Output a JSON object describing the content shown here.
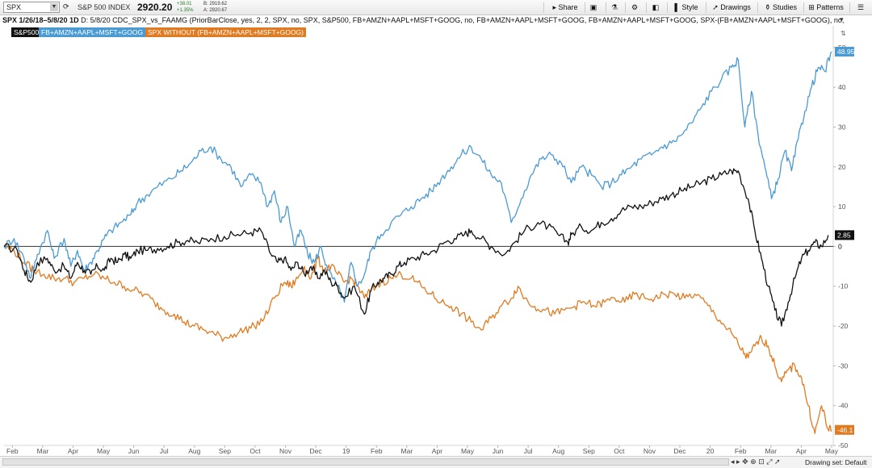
{
  "toolbar": {
    "symbol": "SPX",
    "index_name": "S&P 500 INDEX",
    "last_price": "2920.20",
    "change": "+38.01",
    "change_pct": "+1.35%",
    "bid": "B: 2919.62",
    "ask": "A: 2920.67",
    "share_label": "Share",
    "style_label": "Style",
    "drawings_label": "Drawings",
    "studies_label": "Studies",
    "patterns_label": "Patterns"
  },
  "info": {
    "title": "SPX 1/26/18–5/8/20 1D",
    "text": "D: 5/8/20  CDC_SPX_vs_FAAMG (PriorBarClose, yes, 2, 2, SPX, no, SPX, S&P500, FB+AMZN+AAPL+MSFT+GOOG, no, FB+AMZN+AAPL+MSFT+GOOG, FB+AMZN+AAPL+MSFT+GOOG, SPX-(FB+AMZN+AAPL+MSFT+GOOG), no, SPX ..."
  },
  "bottom": {
    "drawing_set": "Drawing set: Default"
  },
  "colors": {
    "spx": "#111111",
    "faamg": "#4a9ad4",
    "without": "#e07b22",
    "zero_line": "#333333"
  },
  "chart_data": {
    "type": "line",
    "x_tick_labels": [
      "Feb",
      "Mar",
      "Apr",
      "May",
      "Jun",
      "Jul",
      "Aug",
      "Sep",
      "Oct",
      "Nov",
      "Dec",
      "19",
      "Feb",
      "Mar",
      "Apr",
      "May",
      "Jun",
      "Jul",
      "Aug",
      "Sep",
      "Oct",
      "Nov",
      "Dec",
      "20",
      "Feb",
      "Mar",
      "Apr",
      "May"
    ],
    "y_ticks": [
      50,
      40,
      30,
      20,
      10,
      0,
      -10,
      -20,
      -30,
      -40,
      -50
    ],
    "ylim": [
      -50,
      52
    ],
    "reference_line": 0,
    "series": [
      {
        "name": "S&P500",
        "color": "#111111",
        "end_label": "2.85",
        "values": [
          [
            0,
            0
          ],
          [
            0.4,
            -1
          ],
          [
            0.6,
            -6
          ],
          [
            0.8,
            -9
          ],
          [
            1.0,
            -4
          ],
          [
            1.3,
            -3
          ],
          [
            1.5,
            -6
          ],
          [
            1.8,
            -5
          ],
          [
            2.0,
            -8
          ],
          [
            2.2,
            -4
          ],
          [
            2.4,
            -6
          ],
          [
            2.6,
            -7
          ],
          [
            2.8,
            -5
          ],
          [
            3.0,
            -6
          ],
          [
            3.2,
            -3
          ],
          [
            3.4,
            -4
          ],
          [
            3.6,
            -2
          ],
          [
            3.8,
            -3
          ],
          [
            4.0,
            -1
          ],
          [
            4.3,
            -1
          ],
          [
            4.6,
            -0.5
          ],
          [
            4.9,
            0
          ],
          [
            5.2,
            1
          ],
          [
            5.5,
            1.5
          ],
          [
            5.8,
            1
          ],
          [
            6.2,
            2
          ],
          [
            6.6,
            2.5
          ],
          [
            7.0,
            3
          ],
          [
            7.4,
            3.5
          ],
          [
            7.7,
            4
          ],
          [
            8.0,
            -2
          ],
          [
            8.2,
            -4
          ],
          [
            8.4,
            -3
          ],
          [
            8.6,
            -6
          ],
          [
            8.8,
            -4
          ],
          [
            9.0,
            -7
          ],
          [
            9.2,
            -5
          ],
          [
            9.4,
            -8
          ],
          [
            9.6,
            -6
          ],
          [
            9.8,
            -9
          ],
          [
            10.0,
            -10
          ],
          [
            10.2,
            -13
          ],
          [
            10.5,
            -10
          ],
          [
            10.8,
            -17
          ],
          [
            11.0,
            -11
          ],
          [
            11.2,
            -9
          ],
          [
            11.4,
            -8
          ],
          [
            11.6,
            -7
          ],
          [
            11.8,
            -5
          ],
          [
            12.0,
            -4
          ],
          [
            12.3,
            -3
          ],
          [
            12.6,
            -2
          ],
          [
            12.9,
            -1
          ],
          [
            13.2,
            1
          ],
          [
            13.5,
            2
          ],
          [
            13.8,
            3
          ],
          [
            14.0,
            4
          ],
          [
            14.3,
            2
          ],
          [
            14.6,
            0
          ],
          [
            15.0,
            -2
          ],
          [
            15.3,
            1
          ],
          [
            15.6,
            4
          ],
          [
            16.0,
            6
          ],
          [
            16.3,
            5
          ],
          [
            16.6,
            3
          ],
          [
            16.9,
            1
          ],
          [
            17.0,
            3
          ],
          [
            17.3,
            5
          ],
          [
            17.6,
            4
          ],
          [
            17.9,
            6
          ],
          [
            18.2,
            7
          ],
          [
            18.5,
            9
          ],
          [
            18.8,
            10
          ],
          [
            19.1,
            10
          ],
          [
            19.4,
            11
          ],
          [
            19.7,
            12
          ],
          [
            20.0,
            13
          ],
          [
            20.3,
            14
          ],
          [
            20.6,
            15
          ],
          [
            20.9,
            16
          ],
          [
            21.2,
            17
          ],
          [
            21.5,
            18
          ],
          [
            21.8,
            19
          ],
          [
            22.0,
            19
          ],
          [
            22.3,
            12
          ],
          [
            22.5,
            4
          ],
          [
            22.7,
            -3
          ],
          [
            22.9,
            -10
          ],
          [
            23.1,
            -16
          ],
          [
            23.3,
            -20
          ],
          [
            23.5,
            -14
          ],
          [
            23.7,
            -8
          ],
          [
            23.9,
            -3
          ],
          [
            24.1,
            -1
          ],
          [
            24.3,
            1
          ],
          [
            24.5,
            0
          ],
          [
            24.7,
            2.85
          ]
        ]
      },
      {
        "name": "FB+AMZN+AAPL+MSFT+GOOG",
        "color": "#4a9ad4",
        "end_label": "48.95",
        "values": [
          [
            0,
            0
          ],
          [
            0.3,
            2
          ],
          [
            0.6,
            -3
          ],
          [
            0.8,
            -8
          ],
          [
            1.0,
            -2
          ],
          [
            1.3,
            4
          ],
          [
            1.5,
            -3
          ],
          [
            1.8,
            2
          ],
          [
            2.0,
            -5
          ],
          [
            2.2,
            -1
          ],
          [
            2.4,
            -6
          ],
          [
            2.6,
            -4
          ],
          [
            2.8,
            -1
          ],
          [
            3.0,
            2
          ],
          [
            3.2,
            4
          ],
          [
            3.5,
            6
          ],
          [
            3.8,
            8
          ],
          [
            4.0,
            11
          ],
          [
            4.3,
            13
          ],
          [
            4.6,
            15
          ],
          [
            5.0,
            17
          ],
          [
            5.3,
            19
          ],
          [
            5.6,
            21
          ],
          [
            5.9,
            24
          ],
          [
            6.2,
            25
          ],
          [
            6.5,
            22
          ],
          [
            6.8,
            20
          ],
          [
            7.1,
            15
          ],
          [
            7.4,
            18
          ],
          [
            7.7,
            16
          ],
          [
            7.9,
            10
          ],
          [
            8.1,
            14
          ],
          [
            8.3,
            6
          ],
          [
            8.5,
            10
          ],
          [
            8.7,
            0
          ],
          [
            8.9,
            4
          ],
          [
            9.1,
            -2
          ],
          [
            9.3,
            -4
          ],
          [
            9.5,
            0
          ],
          [
            9.7,
            -6
          ],
          [
            10.0,
            -10
          ],
          [
            10.2,
            -14
          ],
          [
            10.4,
            -4
          ],
          [
            10.6,
            -10
          ],
          [
            10.8,
            -7
          ],
          [
            11.0,
            -1
          ],
          [
            11.3,
            3
          ],
          [
            11.6,
            6
          ],
          [
            11.9,
            8
          ],
          [
            12.2,
            10
          ],
          [
            12.5,
            12
          ],
          [
            12.8,
            14
          ],
          [
            13.1,
            17
          ],
          [
            13.4,
            20
          ],
          [
            13.7,
            23
          ],
          [
            14.0,
            25
          ],
          [
            14.3,
            22
          ],
          [
            14.6,
            18
          ],
          [
            14.9,
            16
          ],
          [
            15.2,
            6
          ],
          [
            15.5,
            12
          ],
          [
            15.8,
            18
          ],
          [
            16.1,
            22
          ],
          [
            16.4,
            23
          ],
          [
            16.7,
            21
          ],
          [
            17.0,
            16
          ],
          [
            17.3,
            20
          ],
          [
            17.6,
            18
          ],
          [
            17.9,
            15
          ],
          [
            18.2,
            16
          ],
          [
            18.5,
            18
          ],
          [
            18.8,
            20
          ],
          [
            19.1,
            22
          ],
          [
            19.4,
            23
          ],
          [
            19.7,
            25
          ],
          [
            20.0,
            26
          ],
          [
            20.3,
            28
          ],
          [
            20.6,
            31
          ],
          [
            20.9,
            35
          ],
          [
            21.2,
            39
          ],
          [
            21.5,
            42
          ],
          [
            21.8,
            45
          ],
          [
            22.0,
            47
          ],
          [
            22.2,
            30
          ],
          [
            22.4,
            39
          ],
          [
            22.6,
            28
          ],
          [
            22.8,
            20
          ],
          [
            23.0,
            12
          ],
          [
            23.2,
            17
          ],
          [
            23.4,
            24
          ],
          [
            23.6,
            19
          ],
          [
            23.8,
            27
          ],
          [
            24.0,
            34
          ],
          [
            24.2,
            40
          ],
          [
            24.4,
            45
          ],
          [
            24.6,
            44
          ],
          [
            24.8,
            48.95
          ]
        ]
      },
      {
        "name": "SPX WITHOUT (FB+AMZN+AAPL+MSFT+GOOG)",
        "color": "#e07b22",
        "end_label": "-46.1",
        "values": [
          [
            0,
            0
          ],
          [
            0.3,
            -1
          ],
          [
            0.6,
            -4
          ],
          [
            0.9,
            -6
          ],
          [
            1.2,
            -7
          ],
          [
            1.5,
            -8
          ],
          [
            1.8,
            -8
          ],
          [
            2.1,
            -9
          ],
          [
            2.4,
            -8
          ],
          [
            2.7,
            -7
          ],
          [
            3.0,
            -8
          ],
          [
            3.3,
            -9
          ],
          [
            3.6,
            -10
          ],
          [
            3.9,
            -11
          ],
          [
            4.2,
            -12
          ],
          [
            4.5,
            -14
          ],
          [
            4.8,
            -16
          ],
          [
            5.1,
            -17
          ],
          [
            5.4,
            -19
          ],
          [
            5.7,
            -20
          ],
          [
            6.0,
            -21
          ],
          [
            6.3,
            -22
          ],
          [
            6.6,
            -23
          ],
          [
            6.9,
            -22
          ],
          [
            7.2,
            -21
          ],
          [
            7.5,
            -20
          ],
          [
            7.8,
            -18
          ],
          [
            8.1,
            -13
          ],
          [
            8.4,
            -9
          ],
          [
            8.6,
            -10
          ],
          [
            8.8,
            -8
          ],
          [
            9.0,
            -5
          ],
          [
            9.2,
            -8
          ],
          [
            9.4,
            -3
          ],
          [
            9.6,
            -6
          ],
          [
            9.8,
            -5
          ],
          [
            10.0,
            -7
          ],
          [
            10.2,
            -9
          ],
          [
            10.4,
            -8
          ],
          [
            10.6,
            -10
          ],
          [
            10.8,
            -13
          ],
          [
            11.0,
            -11
          ],
          [
            11.3,
            -9
          ],
          [
            11.6,
            -8
          ],
          [
            11.9,
            -7
          ],
          [
            12.2,
            -8
          ],
          [
            12.5,
            -10
          ],
          [
            12.8,
            -12
          ],
          [
            13.1,
            -14
          ],
          [
            13.4,
            -15
          ],
          [
            13.7,
            -17
          ],
          [
            14.0,
            -19
          ],
          [
            14.3,
            -21
          ],
          [
            14.6,
            -18
          ],
          [
            14.9,
            -15
          ],
          [
            15.2,
            -13
          ],
          [
            15.4,
            -10
          ],
          [
            15.6,
            -13
          ],
          [
            15.9,
            -15
          ],
          [
            16.2,
            -16
          ],
          [
            16.5,
            -17
          ],
          [
            16.8,
            -16
          ],
          [
            17.1,
            -15
          ],
          [
            17.4,
            -14
          ],
          [
            17.7,
            -15
          ],
          [
            18.0,
            -14
          ],
          [
            18.3,
            -13
          ],
          [
            18.6,
            -14
          ],
          [
            18.9,
            -12
          ],
          [
            19.2,
            -13
          ],
          [
            19.5,
            -13
          ],
          [
            19.8,
            -12
          ],
          [
            20.1,
            -12
          ],
          [
            20.4,
            -13
          ],
          [
            20.7,
            -12
          ],
          [
            21.0,
            -14
          ],
          [
            21.3,
            -17
          ],
          [
            21.6,
            -20
          ],
          [
            21.9,
            -23
          ],
          [
            22.1,
            -26
          ],
          [
            22.3,
            -28
          ],
          [
            22.5,
            -25
          ],
          [
            22.7,
            -23
          ],
          [
            22.9,
            -25
          ],
          [
            23.1,
            -30
          ],
          [
            23.3,
            -34
          ],
          [
            23.5,
            -31
          ],
          [
            23.7,
            -30
          ],
          [
            23.9,
            -33
          ],
          [
            24.1,
            -40
          ],
          [
            24.3,
            -47
          ],
          [
            24.5,
            -40
          ],
          [
            24.7,
            -46
          ],
          [
            24.8,
            -46.1
          ]
        ]
      }
    ]
  }
}
